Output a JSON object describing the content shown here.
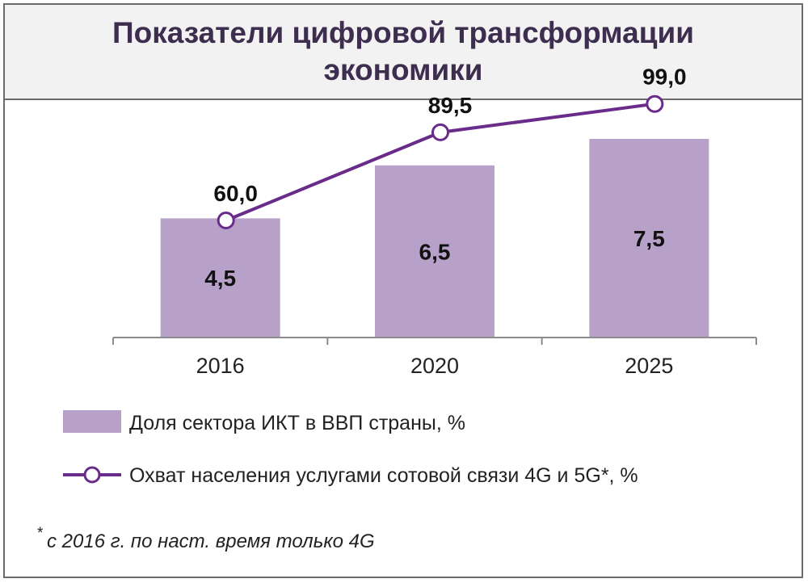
{
  "title": "Показатели цифровой трансформации экономики",
  "chart_data": {
    "type": "bar",
    "categories": [
      "2016",
      "2020",
      "2025"
    ],
    "series": [
      {
        "name": "Доля сектора ИКТ в ВВП страны, %",
        "kind": "bar",
        "values": [
          4.5,
          6.5,
          7.5
        ],
        "labels": [
          "4,5",
          "6,5",
          "7,5"
        ],
        "color": "#b7a1c8"
      },
      {
        "name": "Охват населения услугами сотовой связи 4G и 5G*, %",
        "kind": "line",
        "values": [
          60.0,
          89.5,
          99.0
        ],
        "labels": [
          "60,0",
          "89,5",
          "99,0"
        ],
        "color": "#6a2c8a"
      }
    ],
    "legend_position": "bottom",
    "grid": false
  },
  "footnote": {
    "marker": "*",
    "text": "с 2016 г. по наст. время только 4G"
  }
}
